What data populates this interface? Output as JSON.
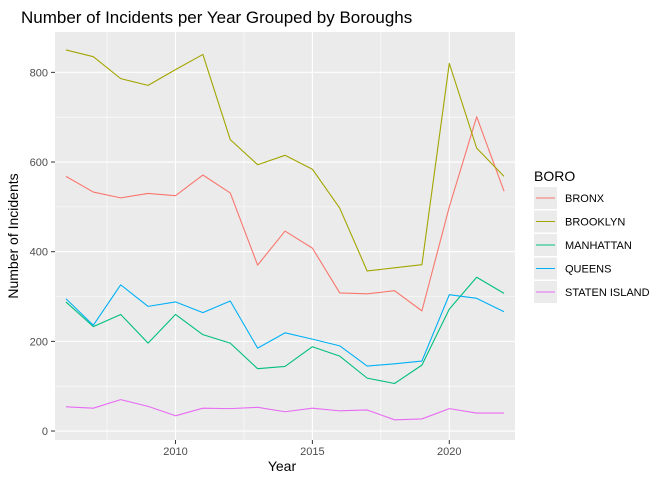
{
  "chart_data": {
    "type": "line",
    "title": "Number of Incidents per Year Grouped by Boroughs",
    "xlabel": "Year",
    "ylabel": "Number of Incidents",
    "xlim": [
      2005.6,
      2022.4
    ],
    "ylim": [
      -20,
      890
    ],
    "x_ticks": [
      2010,
      2015,
      2020
    ],
    "y_ticks": [
      0,
      200,
      400,
      600,
      800
    ],
    "grid": true,
    "legend": {
      "title": "BORO",
      "position": "right"
    },
    "x": [
      2006,
      2007,
      2008,
      2009,
      2010,
      2011,
      2012,
      2013,
      2014,
      2015,
      2016,
      2017,
      2018,
      2019,
      2020,
      2021,
      2022
    ],
    "series": [
      {
        "name": "BRONX",
        "color": "#F8766D",
        "values": [
          568,
          533,
          520,
          530,
          525,
          571,
          531,
          370,
          446,
          408,
          308,
          306,
          313,
          268,
          500,
          701,
          535
        ]
      },
      {
        "name": "BROOKLYN",
        "color": "#A3A500",
        "values": [
          850,
          835,
          786,
          771,
          806,
          840,
          650,
          594,
          615,
          584,
          497,
          357,
          364,
          371,
          820,
          631,
          568
        ]
      },
      {
        "name": "MANHATTAN",
        "color": "#00BF7D",
        "values": [
          288,
          233,
          260,
          196,
          260,
          215,
          196,
          139,
          144,
          188,
          167,
          118,
          106,
          147,
          272,
          343,
          307
        ]
      },
      {
        "name": "QUEENS",
        "color": "#00B0F6",
        "values": [
          295,
          236,
          326,
          278,
          288,
          264,
          290,
          185,
          219,
          205,
          190,
          145,
          150,
          156,
          304,
          296,
          266
        ]
      },
      {
        "name": "STATEN ISLAND",
        "color": "#E76BF3",
        "values": [
          54,
          51,
          70,
          55,
          34,
          51,
          50,
          53,
          43,
          51,
          45,
          47,
          25,
          27,
          50,
          40,
          40
        ]
      }
    ]
  }
}
